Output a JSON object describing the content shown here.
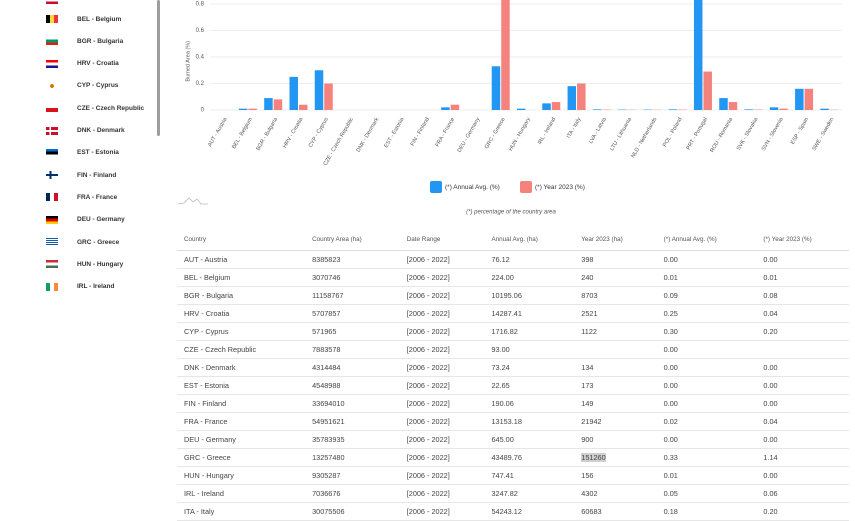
{
  "sidebar": {
    "items": [
      "BEL - Belgium",
      "BGR - Bulgaria",
      "HRV - Croatia",
      "CYP - Cyprus",
      "CZE - Czech Republic",
      "DNK - Denmark",
      "EST - Estonia",
      "FIN - Finland",
      "FRA - France",
      "DEU - Germany",
      "GRC - Greece",
      "HUN - Hungary",
      "IRL - Ireland"
    ]
  },
  "chart_data": {
    "type": "bar",
    "y_label": "Burned Area (%)",
    "categories": [
      "AUT - Austria",
      "BEL - Belgium",
      "BGR - Bulgaria",
      "HRV - Croatia",
      "CYP - Cyprus",
      "CZE - Czech Republic",
      "DNK - Denmark",
      "EST - Estonia",
      "FIN - Finland",
      "FRA - France",
      "DEU - Germany",
      "GRC - Greece",
      "HUN - Hungary",
      "IRL - Ireland",
      "ITA - Italy",
      "LVA - Latvia",
      "LTU - Lithuania",
      "NLD - Netherlands",
      "POL - Poland",
      "PRT - Portugal",
      "ROU - Romania",
      "SVK - Slovakia",
      "SVN - Slovenia",
      "ESP - Spain",
      "SWE - Sweden"
    ],
    "series": [
      {
        "name": "(*) Annual Avg. (%)",
        "color": "#2196f3",
        "values": [
          0,
          0.01,
          0.09,
          0.25,
          0.3,
          0,
          0,
          0,
          0,
          0.02,
          0,
          0.33,
          0.01,
          0.05,
          0.18,
          0.005,
          0.003,
          0.003,
          0.005,
          0.95,
          0.09,
          0.005,
          0.02,
          0.16,
          0.01
        ]
      },
      {
        "name": "(*) Year 2023 (%)",
        "color": "#f4837d",
        "values": [
          0,
          0.01,
          0.08,
          0.04,
          0.2,
          null,
          0,
          0,
          0,
          0.04,
          0,
          1.14,
          0,
          0.06,
          0.2,
          0.003,
          0.002,
          0.002,
          0.003,
          0.29,
          0.06,
          0.003,
          0.01,
          0.16,
          0.002
        ]
      }
    ],
    "ylim": [
      0,
      1.2
    ],
    "yticks": [
      0,
      0.2,
      0.4,
      0.6,
      0.8
    ],
    "grid": true,
    "note": "(*) percentage of the country area"
  },
  "table": {
    "headers": [
      "Country",
      "Country Area (ha)",
      "Date Range",
      "Annual Avg. (ha)",
      "Year 2023 (ha)",
      "(*) Annual Avg. (%)",
      "(*) Year 2023 (%)"
    ],
    "rows": [
      [
        "AUT - Austria",
        "8385823",
        "[2006 - 2022]",
        "76.12",
        "398",
        "0.00",
        "0.00"
      ],
      [
        "BEL - Belgium",
        "3070746",
        "[2006 - 2022]",
        "224.00",
        "240",
        "0.01",
        "0.01"
      ],
      [
        "BGR - Bulgaria",
        "11158767",
        "[2006 - 2022]",
        "10195.06",
        "8703",
        "0.09",
        "0.08"
      ],
      [
        "HRV - Croatia",
        "5707857",
        "[2006 - 2022]",
        "14287.41",
        "2521",
        "0.25",
        "0.04"
      ],
      [
        "CYP - Cyprus",
        "571965",
        "[2006 - 2022]",
        "1716.82",
        "1122",
        "0.30",
        "0.20"
      ],
      [
        "CZE - Czech Republic",
        "7883578",
        "[2006 - 2022]",
        "93.00",
        "",
        "0.00",
        ""
      ],
      [
        "DNK - Denmark",
        "4314484",
        "[2006 - 2022]",
        "73.24",
        "134",
        "0.00",
        "0.00"
      ],
      [
        "EST - Estonia",
        "4548988",
        "[2006 - 2022]",
        "22.65",
        "173",
        "0.00",
        "0.00"
      ],
      [
        "FIN - Finland",
        "33694010",
        "[2006 - 2022]",
        "190.06",
        "149",
        "0.00",
        "0.00"
      ],
      [
        "FRA - France",
        "54951621",
        "[2006 - 2022]",
        "13153.18",
        "21942",
        "0.02",
        "0.04"
      ],
      [
        "DEU - Germany",
        "35783935",
        "[2006 - 2022]",
        "645.00",
        "900",
        "0.00",
        "0.00"
      ],
      [
        "GRC - Greece",
        "13257480",
        "[2006 - 2022]",
        "43489.76",
        "151260",
        "0.33",
        "1.14"
      ],
      [
        "HUN - Hungary",
        "9305287",
        "[2006 - 2022]",
        "747.41",
        "156",
        "0.01",
        "0.00"
      ],
      [
        "IRL - Ireland",
        "7036676",
        "[2006 - 2022]",
        "3247.82",
        "4302",
        "0.05",
        "0.06"
      ],
      [
        "ITA - Italy",
        "30075506",
        "[2006 - 2022]",
        "54243.12",
        "60683",
        "0.18",
        "0.20"
      ]
    ]
  }
}
